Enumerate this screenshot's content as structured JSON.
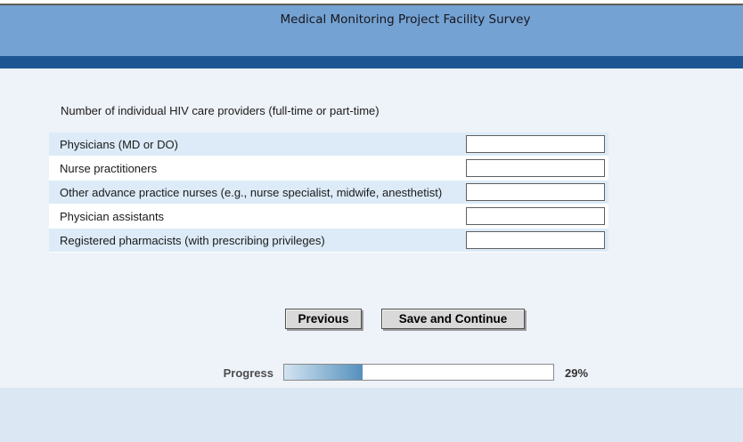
{
  "header": {
    "title": "Medical Monitoring Project Facility Survey"
  },
  "question": "Number of individual HIV care providers (full-time or part-time)",
  "table": {
    "rows": [
      {
        "label": "Physicians (MD or DO)",
        "value": ""
      },
      {
        "label": "Nurse practitioners",
        "value": ""
      },
      {
        "label": "Other advance practice nurses (e.g., nurse specialist, midwife, anesthetist)",
        "value": ""
      },
      {
        "label": "Physician assistants",
        "value": ""
      },
      {
        "label": "Registered pharmacists (with prescribing privileges)",
        "value": ""
      }
    ]
  },
  "buttons": {
    "previous": "Previous",
    "save_continue": "Save and Continue"
  },
  "progress": {
    "label": "Progress",
    "percent": 29,
    "percent_label": "29%"
  },
  "colors": {
    "header_bg": "#74a2d2",
    "header_bar": "#1e5694",
    "page_bg": "#eef2f9",
    "row_alt_bg": "#dcebf7",
    "footer_bg": "#dbe7f2",
    "progress_fill_from": "#d3e4f1",
    "progress_fill_to": "#5490bd",
    "top_line": "#5e5e52"
  }
}
